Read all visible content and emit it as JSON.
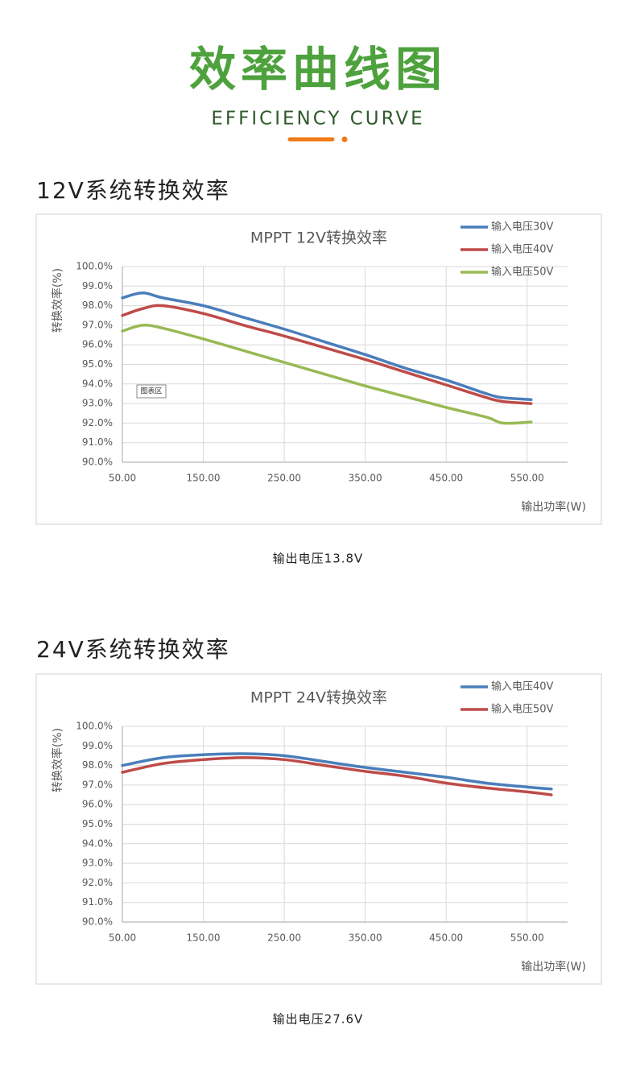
{
  "header": {
    "title": "效率曲线图",
    "subtitle": "EFFICIENCY CURVE"
  },
  "sections": [
    {
      "heading": "12V系统转换效率",
      "caption": "输出电压13.8V"
    },
    {
      "heading": "24V系统转换效率",
      "caption": "输出电压27.6V"
    }
  ],
  "chart_data": [
    {
      "type": "line",
      "title": "MPPT 12V转换效率",
      "x_label": "输出功率(W)",
      "y_label": "转换效率(%)",
      "annotation": "图表区",
      "x": [
        50,
        75,
        100,
        150,
        200,
        250,
        300,
        350,
        400,
        450,
        500,
        520,
        555
      ],
      "series": [
        {
          "name": "输入电压30V",
          "color": "#4a7ebb",
          "values": [
            98.4,
            98.65,
            98.4,
            98.0,
            97.4,
            96.8,
            96.15,
            95.5,
            94.8,
            94.2,
            93.5,
            93.3,
            93.2
          ]
        },
        {
          "name": "输入电压40V",
          "color": "#be4b48",
          "values": [
            97.5,
            97.85,
            98.0,
            97.6,
            97.0,
            96.45,
            95.85,
            95.25,
            94.6,
            93.95,
            93.3,
            93.1,
            93.0
          ]
        },
        {
          "name": "输入电压50V",
          "color": "#98b954",
          "values": [
            96.7,
            97.0,
            96.85,
            96.3,
            95.7,
            95.1,
            94.5,
            93.9,
            93.35,
            92.8,
            92.3,
            92.0,
            92.05
          ]
        }
      ],
      "xlim": [
        50,
        600
      ],
      "ylim": [
        90,
        100
      ],
      "xticks": [
        {
          "value": 50,
          "label": "50.00"
        },
        {
          "value": 150,
          "label": "150.00"
        },
        {
          "value": 250,
          "label": "250.00"
        },
        {
          "value": 350,
          "label": "350.00"
        },
        {
          "value": 450,
          "label": "450.00"
        },
        {
          "value": 550,
          "label": "550.00"
        }
      ],
      "yticks": [
        {
          "value": 90,
          "label": "90.0%"
        },
        {
          "value": 91,
          "label": "91.0%"
        },
        {
          "value": 92,
          "label": "92.0%"
        },
        {
          "value": 93,
          "label": "93.0%"
        },
        {
          "value": 94,
          "label": "94.0%"
        },
        {
          "value": 95,
          "label": "95.0%"
        },
        {
          "value": 96,
          "label": "96.0%"
        },
        {
          "value": 97,
          "label": "97.0%"
        },
        {
          "value": 98,
          "label": "98.0%"
        },
        {
          "value": 99,
          "label": "99.0%"
        },
        {
          "value": 100,
          "label": "100.0%"
        }
      ],
      "grid": true,
      "legend": "top-right"
    },
    {
      "type": "line",
      "title": "MPPT 24V转换效率",
      "x_label": "输出功率(W)",
      "y_label": "转换效率(%)",
      "x": [
        50,
        100,
        150,
        200,
        250,
        300,
        350,
        400,
        450,
        500,
        550,
        580
      ],
      "series": [
        {
          "name": "输入电压40V",
          "color": "#4a7ebb",
          "values": [
            98.0,
            98.4,
            98.55,
            98.6,
            98.5,
            98.2,
            97.9,
            97.65,
            97.4,
            97.1,
            96.9,
            96.8
          ]
        },
        {
          "name": "输入电压50V",
          "color": "#be4b48",
          "values": [
            97.65,
            98.1,
            98.3,
            98.4,
            98.3,
            98.0,
            97.7,
            97.45,
            97.1,
            96.85,
            96.65,
            96.5
          ]
        }
      ],
      "xlim": [
        50,
        600
      ],
      "ylim": [
        90,
        100
      ],
      "xticks": [
        {
          "value": 50,
          "label": "50.00"
        },
        {
          "value": 150,
          "label": "150.00"
        },
        {
          "value": 250,
          "label": "250.00"
        },
        {
          "value": 350,
          "label": "350.00"
        },
        {
          "value": 450,
          "label": "450.00"
        },
        {
          "value": 550,
          "label": "550.00"
        }
      ],
      "yticks": [
        {
          "value": 90,
          "label": "90.0%"
        },
        {
          "value": 91,
          "label": "91.0%"
        },
        {
          "value": 92,
          "label": "92.0%"
        },
        {
          "value": 93,
          "label": "93.0%"
        },
        {
          "value": 94,
          "label": "94.0%"
        },
        {
          "value": 95,
          "label": "95.0%"
        },
        {
          "value": 96,
          "label": "96.0%"
        },
        {
          "value": 97,
          "label": "97.0%"
        },
        {
          "value": 98,
          "label": "98.0%"
        },
        {
          "value": 99,
          "label": "99.0%"
        },
        {
          "value": 100,
          "label": "100.0%"
        }
      ],
      "grid": true,
      "legend": "top-right"
    }
  ]
}
